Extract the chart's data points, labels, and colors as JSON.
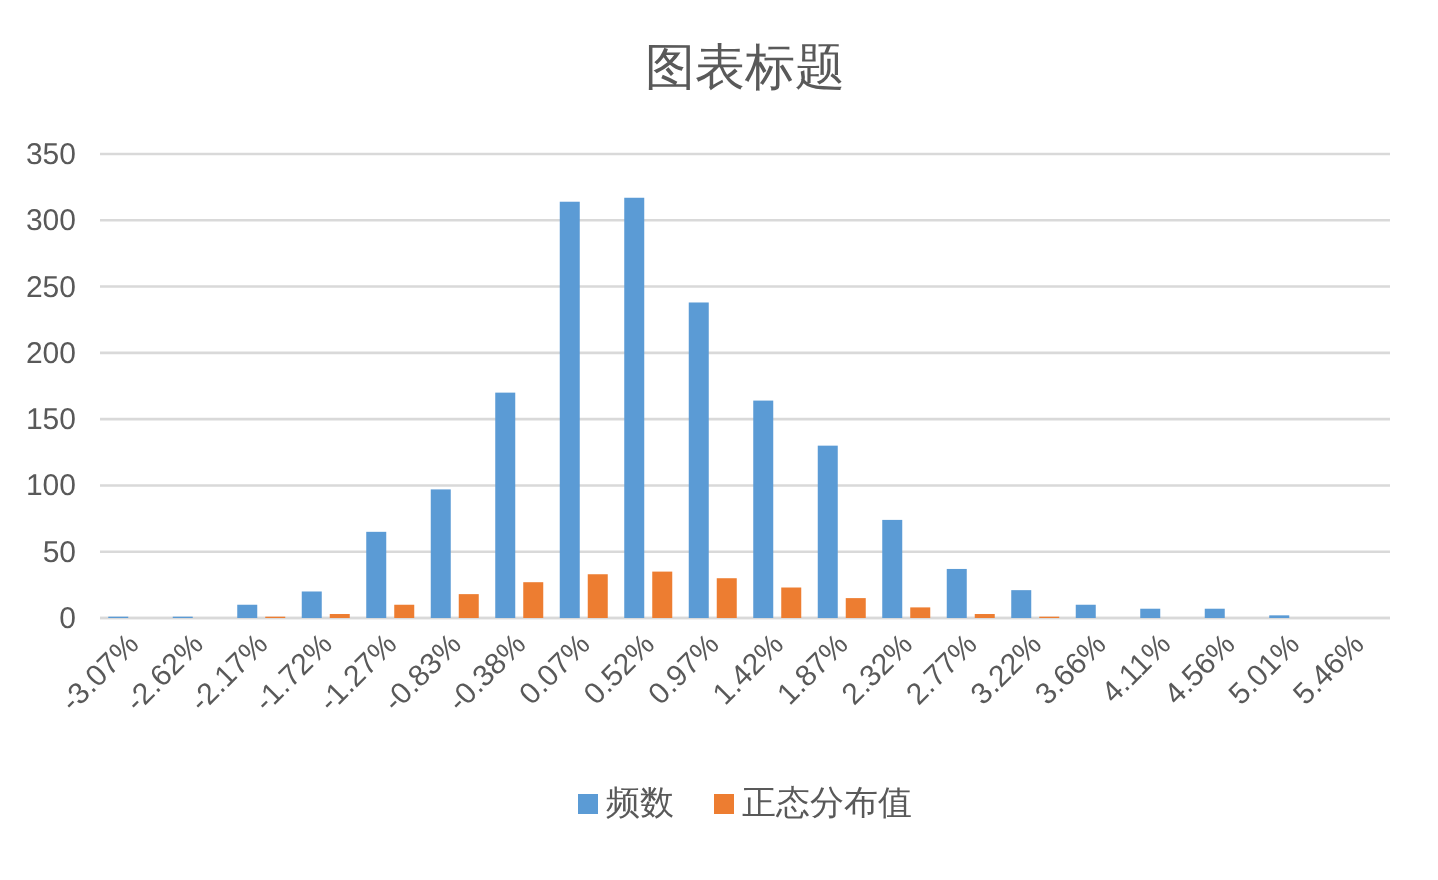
{
  "chart_data": {
    "type": "bar",
    "title": "图表标题",
    "categories": [
      "-3.07%",
      "-2.62%",
      "-2.17%",
      "-1.72%",
      "-1.27%",
      "-0.83%",
      "-0.38%",
      "0.07%",
      "0.52%",
      "0.97%",
      "1.42%",
      "1.87%",
      "2.32%",
      "2.77%",
      "3.22%",
      "3.66%",
      "4.11%",
      "4.56%",
      "5.01%",
      "5.46%"
    ],
    "series": [
      {
        "name": "频数",
        "color": "#5b9bd5",
        "values": [
          1,
          1,
          10,
          20,
          65,
          97,
          170,
          314,
          317,
          238,
          164,
          130,
          74,
          37,
          21,
          10,
          7,
          7,
          2,
          0
        ]
      },
      {
        "name": "正态分布值",
        "color": "#ed7d31",
        "values": [
          0,
          0,
          1,
          3,
          10,
          18,
          27,
          33,
          35,
          30,
          23,
          15,
          8,
          3,
          1,
          0,
          0,
          0,
          0,
          0
        ]
      }
    ],
    "ylim": [
      0,
      350
    ],
    "yticks": [
      0,
      50,
      100,
      150,
      200,
      250,
      300,
      350
    ],
    "grid": "y",
    "legend": "bottom"
  }
}
